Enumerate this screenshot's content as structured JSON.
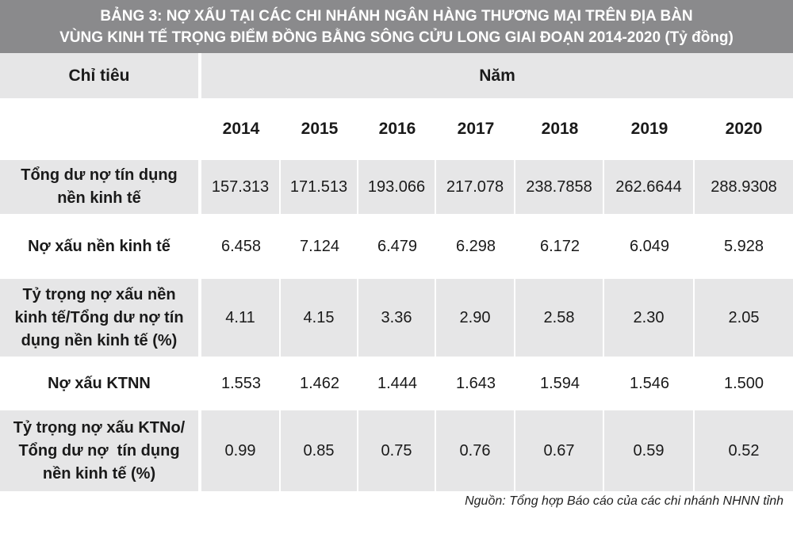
{
  "title": {
    "line1": "BẢNG 3: NỢ XẤU TẠI CÁC CHI NHÁNH NGÂN HÀNG THƯƠNG MẠI TRÊN ĐỊA BÀN",
    "line2": "VÙNG KINH TẾ TRỌNG ĐIỂM ĐỒNG BẰNG SÔNG CỬU LONG GIAI ĐOẠN 2014-2020 (Tỷ đồng)"
  },
  "header": {
    "indicator": "Chỉ tiêu",
    "year_group": "Năm",
    "years": [
      "2014",
      "2015",
      "2016",
      "2017",
      "2018",
      "2019",
      "2020"
    ]
  },
  "rows": [
    {
      "label": [
        "Tổng dư nợ tín dụng",
        "nền kinh tế"
      ],
      "values": [
        "157.313",
        "171.513",
        "193.066",
        "217.078",
        "238.7858",
        "262.6644",
        "288.9308"
      ]
    },
    {
      "label": [
        "Nợ xấu nền kinh tế"
      ],
      "values": [
        "6.458",
        "7.124",
        "6.479",
        "6.298",
        "6.172",
        "6.049",
        "5.928"
      ]
    },
    {
      "label": [
        "Tỷ trọng nợ xấu nền",
        "kinh tế/Tổng dư nợ tín",
        "dụng nền kinh tế (%)"
      ],
      "values": [
        "4.11",
        "4.15",
        "3.36",
        "2.90",
        "2.58",
        "2.30",
        "2.05"
      ]
    },
    {
      "label": [
        "Nợ xấu KTNN"
      ],
      "values": [
        "1.553",
        "1.462",
        "1.444",
        "1.643",
        "1.594",
        "1.546",
        "1.500"
      ]
    },
    {
      "label": [
        "Tỷ trọng nợ xấu KTNo/",
        "Tổng dư nợ  tín dụng",
        "nền kinh tế (%)"
      ],
      "values": [
        "0.99",
        "0.85",
        "0.75",
        "0.76",
        "0.67",
        "0.59",
        "0.52"
      ]
    }
  ],
  "source": "Nguồn: Tổng hợp Báo cáo của các chi nhánh NHNN tỉnh",
  "colors": {
    "title_background": "#8a8a8c",
    "shaded_row": "#e6e6e7"
  }
}
